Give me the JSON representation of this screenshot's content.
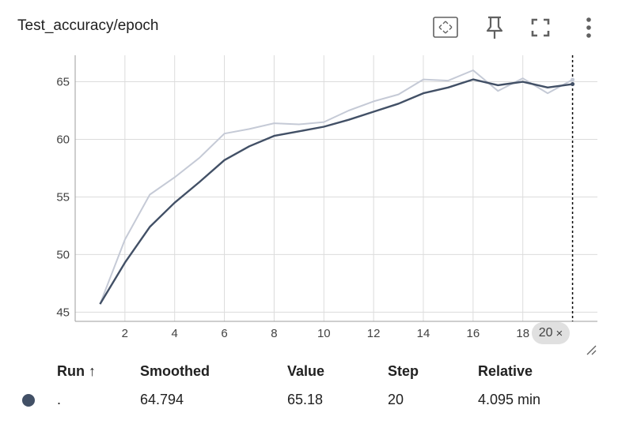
{
  "title": "Test_accuracy/epoch",
  "toolbar": {
    "icons": [
      "fit-domain-icon",
      "pin-icon",
      "fullscreen-icon",
      "more-vert-icon"
    ]
  },
  "chart_data": {
    "type": "line",
    "x": [
      1,
      2,
      3,
      4,
      5,
      6,
      7,
      8,
      9,
      10,
      11,
      12,
      13,
      14,
      15,
      16,
      17,
      18,
      19,
      20
    ],
    "series": [
      {
        "role": "raw",
        "color": "#c5cad6",
        "values": [
          45.7,
          51.3,
          55.2,
          56.7,
          58.4,
          60.5,
          60.9,
          61.4,
          61.3,
          61.5,
          62.5,
          63.3,
          63.9,
          65.2,
          65.1,
          66.0,
          64.2,
          65.3,
          64.0,
          65.18
        ]
      },
      {
        "role": "smoothed",
        "color": "#425066",
        "values": [
          45.7,
          49.3,
          52.4,
          54.5,
          56.3,
          58.2,
          59.4,
          60.3,
          60.7,
          61.1,
          61.7,
          62.4,
          63.1,
          64.0,
          64.5,
          65.2,
          64.7,
          65.0,
          64.5,
          64.794
        ]
      }
    ],
    "xlim": [
      0,
      21
    ],
    "ylim": [
      44.2,
      67.3
    ],
    "x_ticks": [
      2,
      4,
      6,
      8,
      10,
      12,
      14,
      16,
      18
    ],
    "x_tick_labels": [
      "2",
      "4",
      "6",
      "8",
      "10",
      "12",
      "14",
      "16",
      "18"
    ],
    "y_ticks": [
      45,
      50,
      55,
      60,
      65
    ],
    "y_tick_labels": [
      "45",
      "50",
      "55",
      "60",
      "65"
    ],
    "grid": true,
    "hover_step": 20,
    "hover_step_label": "20",
    "close_label": "×"
  },
  "legend_table": {
    "headers": {
      "run": "Run ↑",
      "smoothed": "Smoothed",
      "value": "Value",
      "step": "Step",
      "relative": "Relative"
    },
    "rows": [
      {
        "color": "#425066",
        "run": ".",
        "smoothed": "64.794",
        "value": "65.18",
        "step": "20",
        "relative": "4.095 min"
      }
    ]
  }
}
